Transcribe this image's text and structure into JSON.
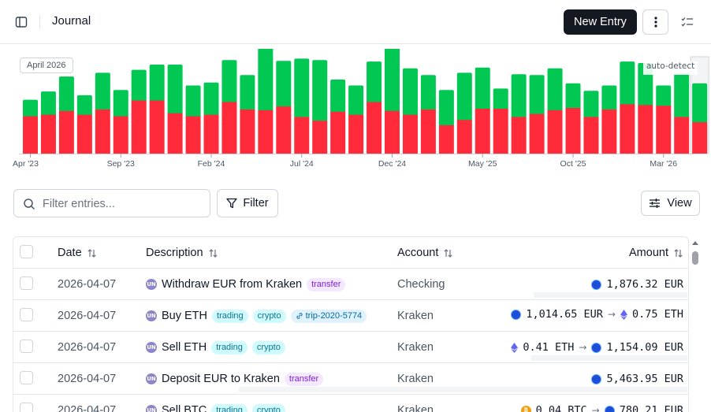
{
  "header": {
    "title": "Journal",
    "new_entry_label": "New Entry"
  },
  "chart": {
    "month_badge": "April 2026",
    "auto_label": "auto-detect",
    "ticks": [
      "Apr '23",
      "Sep '23",
      "Feb '24",
      "Jul '24",
      "Dec '24",
      "May '25",
      "Oct '25",
      "Mar '26"
    ],
    "colors": {
      "green": "#00c853",
      "red": "#ff2b3a"
    }
  },
  "chart_data": {
    "type": "bar",
    "stacked": true,
    "x_start_label": "Apr '23",
    "series": [
      {
        "values": [
          50,
          52,
          57,
          52,
          59,
          50,
          71,
          71,
          54,
          50,
          52,
          69,
          59,
          58,
          63,
          49,
          44,
          56,
          52,
          69,
          57,
          52,
          59,
          38,
          45,
          60,
          60,
          49,
          53,
          58,
          61,
          49,
          59,
          66,
          65,
          64,
          49,
          42
        ]
      },
      {
        "values": [
          22,
          31,
          46,
          26,
          49,
          35,
          41,
          48,
          65,
          41,
          43,
          56,
          46,
          85,
          61,
          78,
          81,
          43,
          39,
          54,
          89,
          62,
          46,
          47,
          63,
          55,
          27,
          57,
          52,
          56,
          33,
          35,
          32,
          57,
          56,
          27,
          58,
          52
        ]
      }
    ]
  },
  "toolbar": {
    "search_placeholder": "Filter entries...",
    "filter_label": "Filter",
    "view_label": "View"
  },
  "table": {
    "columns": {
      "date": "Date",
      "description": "Description",
      "account": "Account",
      "amount": "Amount"
    },
    "rows": [
      {
        "date": "2026-04-07",
        "avatar": "UN",
        "description": "Withdraw EUR from Kraken",
        "tags": [
          "transfer"
        ],
        "account": "Checking",
        "amount": {
          "text": "1,876.32 EUR"
        }
      },
      {
        "date": "2026-04-07",
        "avatar": "UN",
        "description": "Buy ETH",
        "tags": [
          "trading",
          "crypto",
          "trip-2020-5774"
        ],
        "account": "Kraken",
        "amount": {
          "from": "1,014.65 EUR",
          "arrow": "→",
          "to": "0.75 ETH"
        }
      },
      {
        "date": "2026-04-07",
        "avatar": "UN",
        "description": "Sell ETH",
        "tags": [
          "trading",
          "crypto"
        ],
        "account": "Kraken",
        "amount": {
          "from": "0.41 ETH",
          "arrow": "→",
          "to": "1,154.09 EUR"
        }
      },
      {
        "date": "2026-04-07",
        "avatar": "UN",
        "description": "Deposit EUR to Kraken",
        "tags": [
          "transfer"
        ],
        "account": "Kraken",
        "amount": {
          "text": "5,463.95 EUR"
        }
      },
      {
        "date": "2026-04-07",
        "avatar": "UN",
        "description": "Sell BTC",
        "tags": [
          "trading",
          "crypto"
        ],
        "account": "Kraken",
        "amount": {
          "from": "0.04 BTC",
          "arrow": "→",
          "to": "780.21 EUR"
        }
      }
    ]
  }
}
